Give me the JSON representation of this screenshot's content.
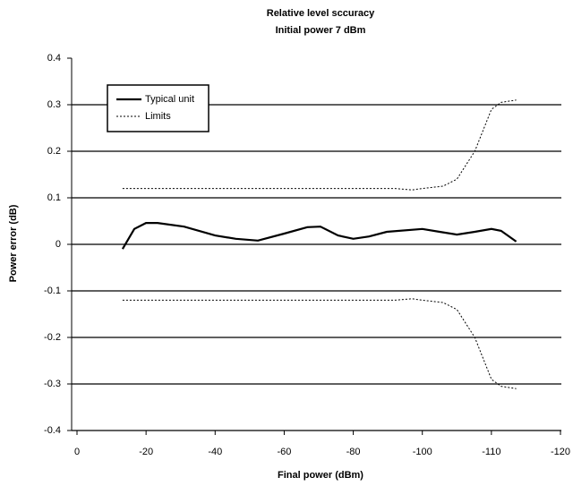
{
  "chart_data": {
    "type": "line",
    "title": "Relative level sccuracy",
    "subtitle": "Initial power 7 dBm",
    "x_label": "Final power (dBm)",
    "y_label": "Power error (dB)",
    "xlim": [
      0,
      -120
    ],
    "xticks": [
      0,
      -20,
      -40,
      -60,
      -80,
      -100,
      -110,
      -120
    ],
    "ylim": [
      -0.4,
      0.4
    ],
    "yticks": [
      0.4,
      0.3,
      0.2,
      0.1,
      0,
      -0.1,
      -0.2,
      -0.3,
      -0.4
    ],
    "grid": true,
    "legend": "upper left",
    "series": [
      {
        "name": "Typical unit",
        "color": "#000000",
        "style": "solid",
        "x": [
          -13.2,
          -16.6,
          -20,
          -23.3,
          -31,
          -40,
          -46,
          -52.4,
          -60,
          -66.7,
          -70.5,
          -75.6,
          -80,
          -84.6,
          -89.7,
          -100,
          -102.5,
          -105,
          -107.6,
          -110,
          -111.4,
          -113.6
        ],
        "values": [
          -0.01,
          0.033,
          0.046,
          0.046,
          0.038,
          0.019,
          0.012,
          0.008,
          0.023,
          0.037,
          0.038,
          0.019,
          0.012,
          0.017,
          0.027,
          0.033,
          0.027,
          0.021,
          0.027,
          0.033,
          0.029,
          0.006
        ]
      },
      {
        "name": "Limits",
        "color": "#000000",
        "style": "dotted",
        "x": [
          -13.2,
          -40,
          -80,
          -92,
          -97,
          -100,
          -103,
          -105,
          -107.6,
          -110,
          -111.4,
          -113.6
        ],
        "values": [
          0.12,
          0.12,
          0.12,
          0.12,
          0.117,
          0.12,
          0.125,
          0.14,
          0.2,
          0.29,
          0.305,
          0.31
        ]
      },
      {
        "color": "#000000",
        "style": "dotted",
        "x": [
          -13.2,
          -40,
          -80,
          -92,
          -97,
          -100,
          -103,
          -105,
          -107.6,
          -110,
          -111.4,
          -113.6
        ],
        "values": [
          -0.12,
          -0.12,
          -0.12,
          -0.12,
          -0.117,
          -0.12,
          -0.125,
          -0.14,
          -0.2,
          -0.29,
          -0.305,
          -0.31
        ]
      }
    ]
  }
}
